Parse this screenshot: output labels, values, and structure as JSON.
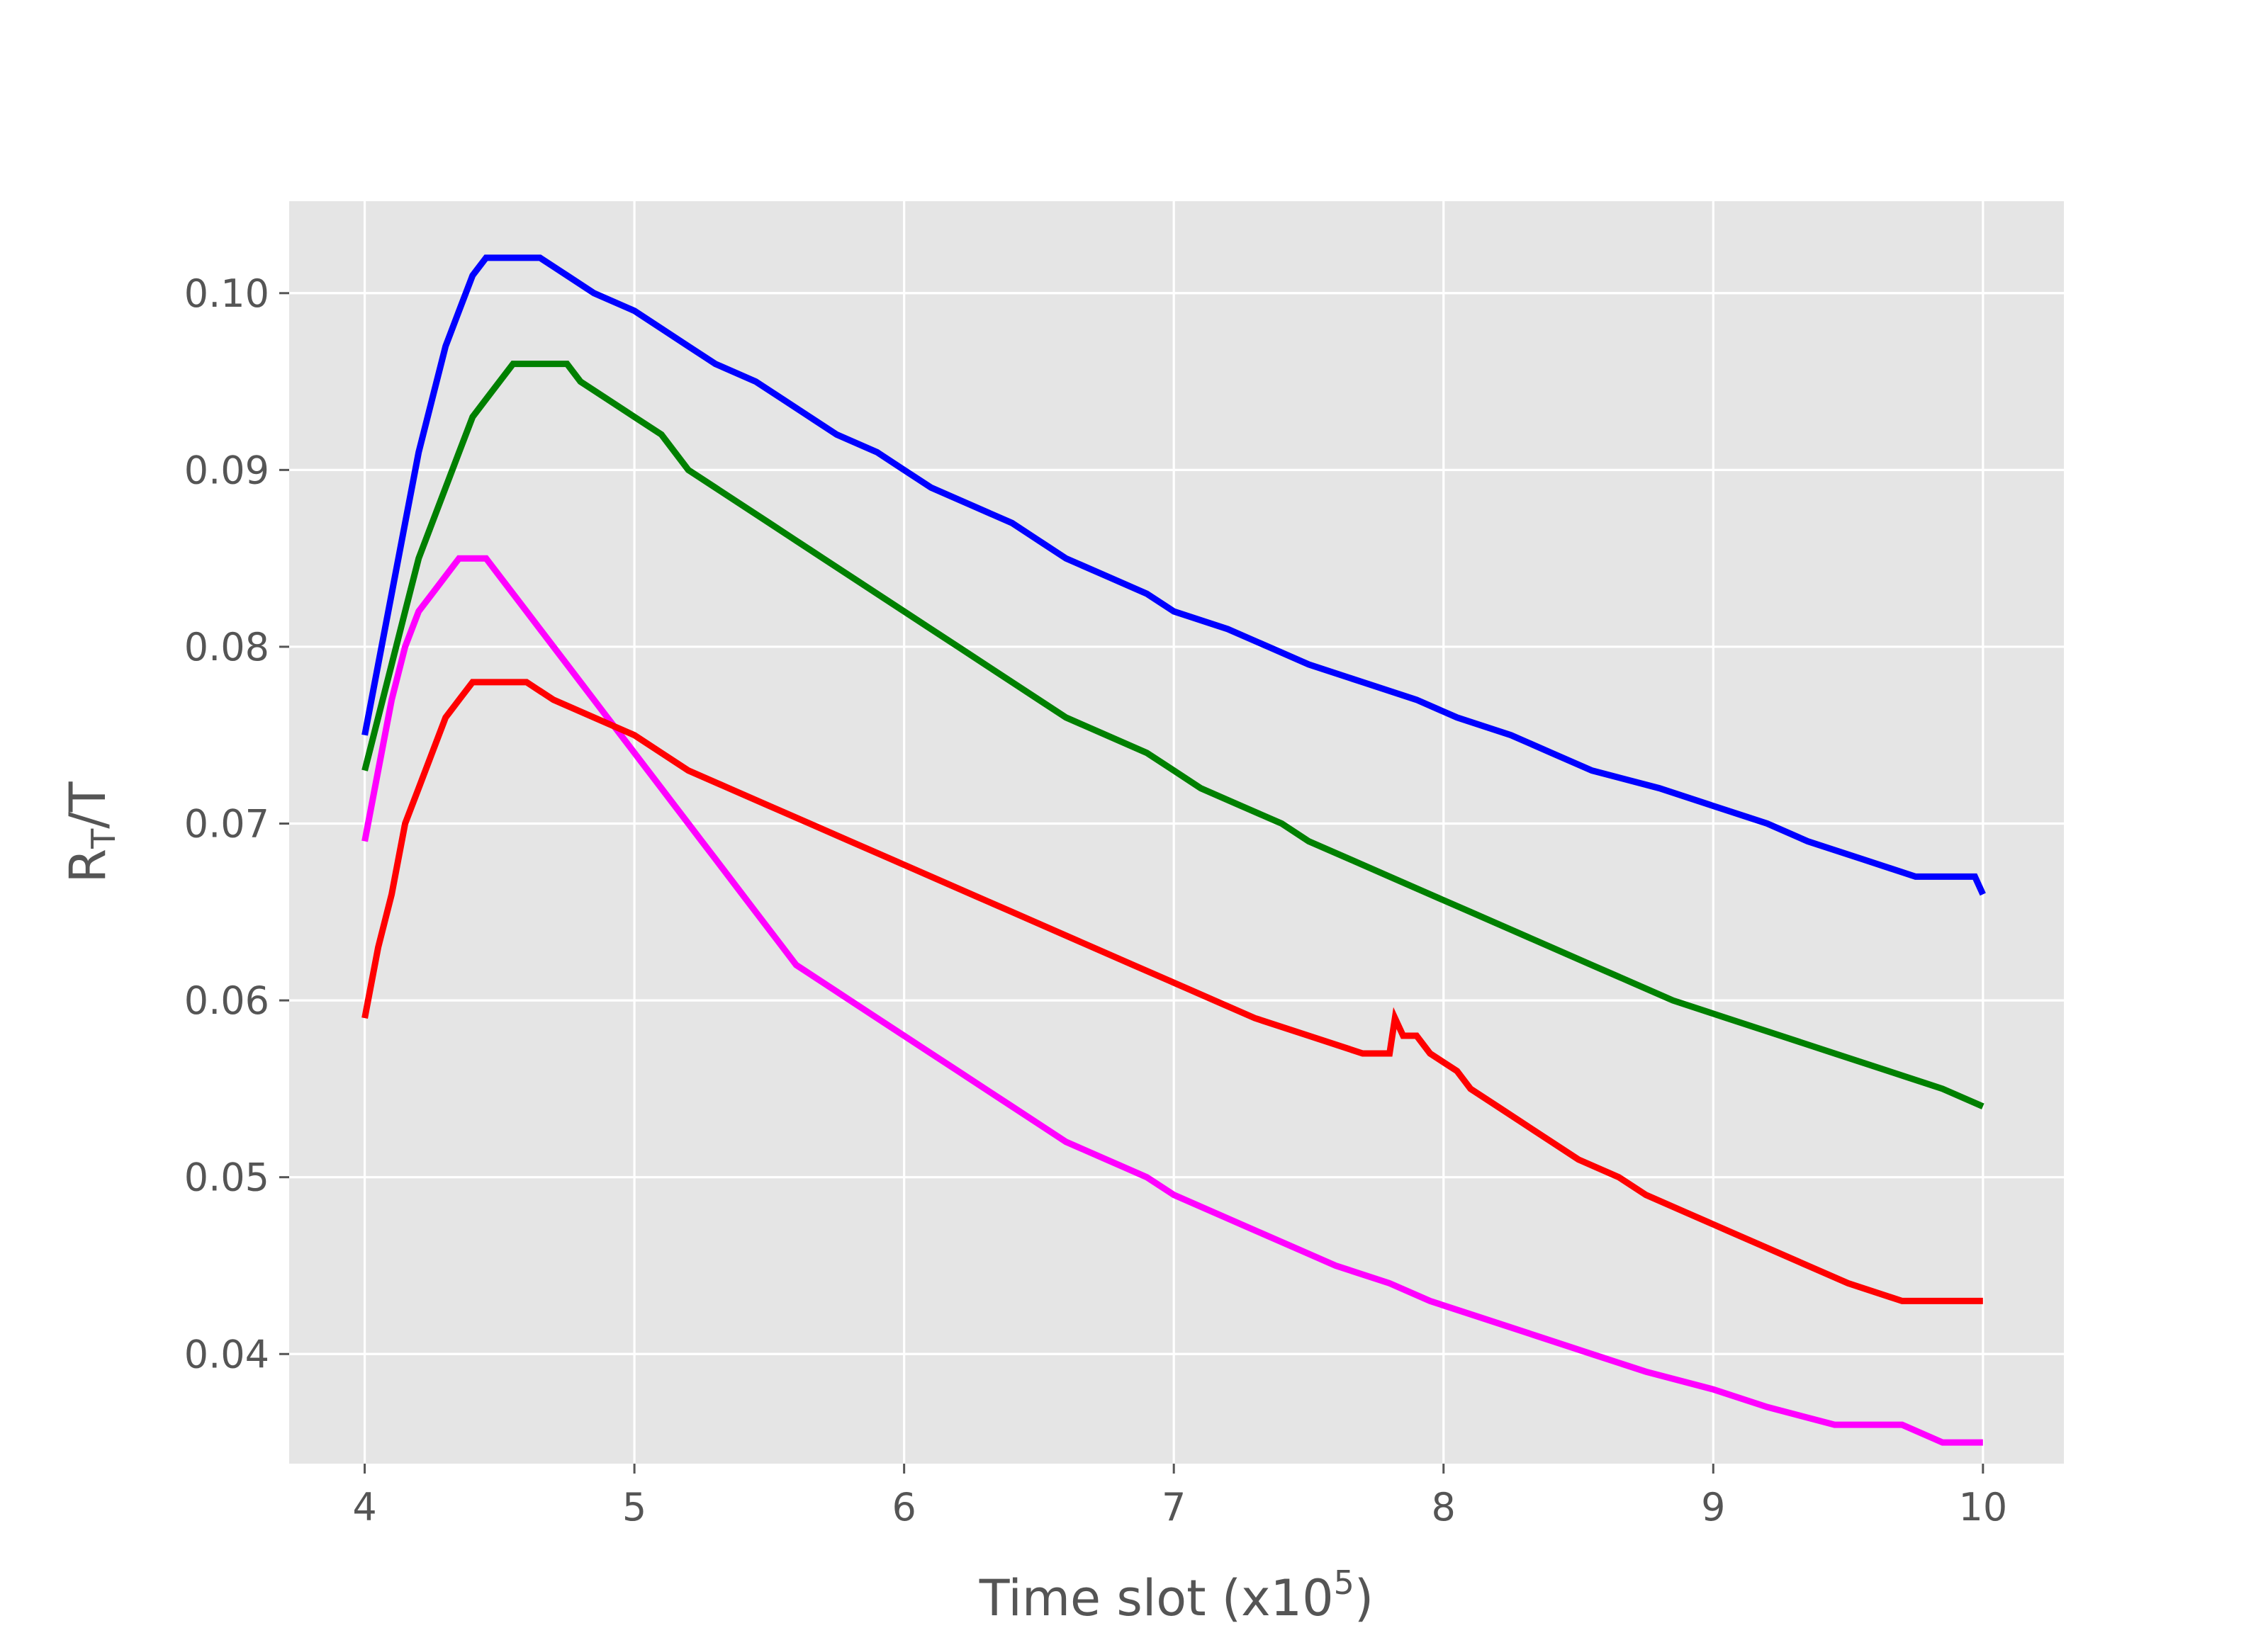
{
  "chart_data": {
    "type": "line",
    "title": "",
    "xlabel": "Time slot (x10",
    "xlabel_sup": "5",
    "xlabel_tail": ")",
    "ylabel": "R",
    "ylabel_sub": "T",
    "ylabel_tail": "/T",
    "xlim": [
      3.72,
      10.3
    ],
    "ylim": [
      0.0338,
      0.1052
    ],
    "xticks": [
      4,
      5,
      6,
      7,
      8,
      9,
      10
    ],
    "yticks": [
      0.04,
      0.05,
      0.06,
      0.07,
      0.08,
      0.09,
      0.1
    ],
    "ytick_labels": [
      "0.04",
      "0.05",
      "0.06",
      "0.07",
      "0.08",
      "0.09",
      "0.10"
    ],
    "grid": true,
    "background": "#e5e5e5",
    "series": [
      {
        "color": "#0000ff",
        "values": [
          [
            4.0,
            0.075
          ],
          [
            4.05,
            0.079
          ],
          [
            4.1,
            0.083
          ],
          [
            4.15,
            0.087
          ],
          [
            4.2,
            0.091
          ],
          [
            4.25,
            0.094
          ],
          [
            4.3,
            0.097
          ],
          [
            4.35,
            0.099
          ],
          [
            4.4,
            0.101
          ],
          [
            4.45,
            0.102
          ],
          [
            4.65,
            0.102
          ],
          [
            4.75,
            0.101
          ],
          [
            4.85,
            0.1
          ],
          [
            5.0,
            0.099
          ],
          [
            5.1,
            0.098
          ],
          [
            5.2,
            0.097
          ],
          [
            5.3,
            0.096
          ],
          [
            5.45,
            0.095
          ],
          [
            5.55,
            0.094
          ],
          [
            5.65,
            0.093
          ],
          [
            5.75,
            0.092
          ],
          [
            5.9,
            0.091
          ],
          [
            6.0,
            0.09
          ],
          [
            6.1,
            0.089
          ],
          [
            6.25,
            0.088
          ],
          [
            6.4,
            0.087
          ],
          [
            6.5,
            0.086
          ],
          [
            6.6,
            0.085
          ],
          [
            6.75,
            0.084
          ],
          [
            6.9,
            0.083
          ],
          [
            7.0,
            0.082
          ],
          [
            7.2,
            0.081
          ],
          [
            7.35,
            0.08
          ],
          [
            7.5,
            0.079
          ],
          [
            7.7,
            0.078
          ],
          [
            7.9,
            0.077
          ],
          [
            8.05,
            0.076
          ],
          [
            8.25,
            0.075
          ],
          [
            8.4,
            0.074
          ],
          [
            8.55,
            0.073
          ],
          [
            8.8,
            0.072
          ],
          [
            9.0,
            0.071
          ],
          [
            9.2,
            0.07
          ],
          [
            9.35,
            0.069
          ],
          [
            9.55,
            0.068
          ],
          [
            9.75,
            0.067
          ],
          [
            9.97,
            0.067
          ],
          [
            10.0,
            0.066
          ]
        ]
      },
      {
        "color": "#008000",
        "values": [
          [
            4.0,
            0.073
          ],
          [
            4.05,
            0.076
          ],
          [
            4.1,
            0.079
          ],
          [
            4.15,
            0.082
          ],
          [
            4.2,
            0.085
          ],
          [
            4.25,
            0.087
          ],
          [
            4.3,
            0.089
          ],
          [
            4.35,
            0.091
          ],
          [
            4.4,
            0.093
          ],
          [
            4.45,
            0.094
          ],
          [
            4.5,
            0.095
          ],
          [
            4.55,
            0.096
          ],
          [
            4.75,
            0.096
          ],
          [
            4.8,
            0.095
          ],
          [
            4.9,
            0.094
          ],
          [
            5.0,
            0.093
          ],
          [
            5.1,
            0.092
          ],
          [
            5.15,
            0.091
          ],
          [
            5.2,
            0.09
          ],
          [
            5.3,
            0.089
          ],
          [
            5.4,
            0.088
          ],
          [
            5.5,
            0.087
          ],
          [
            5.6,
            0.086
          ],
          [
            5.7,
            0.085
          ],
          [
            5.8,
            0.084
          ],
          [
            5.9,
            0.083
          ],
          [
            6.0,
            0.082
          ],
          [
            6.1,
            0.081
          ],
          [
            6.2,
            0.08
          ],
          [
            6.3,
            0.079
          ],
          [
            6.4,
            0.078
          ],
          [
            6.5,
            0.077
          ],
          [
            6.6,
            0.076
          ],
          [
            6.75,
            0.075
          ],
          [
            6.9,
            0.074
          ],
          [
            7.0,
            0.073
          ],
          [
            7.1,
            0.072
          ],
          [
            7.25,
            0.071
          ],
          [
            7.4,
            0.07
          ],
          [
            7.5,
            0.069
          ],
          [
            7.65,
            0.068
          ],
          [
            7.8,
            0.067
          ],
          [
            7.95,
            0.066
          ],
          [
            8.1,
            0.065
          ],
          [
            8.25,
            0.064
          ],
          [
            8.4,
            0.063
          ],
          [
            8.55,
            0.062
          ],
          [
            8.7,
            0.061
          ],
          [
            8.85,
            0.06
          ],
          [
            9.05,
            0.059
          ],
          [
            9.25,
            0.058
          ],
          [
            9.45,
            0.057
          ],
          [
            9.65,
            0.056
          ],
          [
            9.85,
            0.055
          ],
          [
            10.0,
            0.054
          ]
        ]
      },
      {
        "color": "#ff00ff",
        "values": [
          [
            4.0,
            0.069
          ],
          [
            4.05,
            0.073
          ],
          [
            4.1,
            0.077
          ],
          [
            4.15,
            0.08
          ],
          [
            4.2,
            0.082
          ],
          [
            4.25,
            0.083
          ],
          [
            4.3,
            0.084
          ],
          [
            4.35,
            0.085
          ],
          [
            4.45,
            0.085
          ],
          [
            4.5,
            0.084
          ],
          [
            4.55,
            0.083
          ],
          [
            4.6,
            0.082
          ],
          [
            4.65,
            0.081
          ],
          [
            4.7,
            0.08
          ],
          [
            4.75,
            0.079
          ],
          [
            4.8,
            0.078
          ],
          [
            4.85,
            0.077
          ],
          [
            4.9,
            0.076
          ],
          [
            4.95,
            0.075
          ],
          [
            5.0,
            0.074
          ],
          [
            5.05,
            0.073
          ],
          [
            5.1,
            0.072
          ],
          [
            5.15,
            0.071
          ],
          [
            5.2,
            0.07
          ],
          [
            5.25,
            0.069
          ],
          [
            5.3,
            0.068
          ],
          [
            5.35,
            0.067
          ],
          [
            5.4,
            0.066
          ],
          [
            5.45,
            0.065
          ],
          [
            5.5,
            0.064
          ],
          [
            5.55,
            0.063
          ],
          [
            5.6,
            0.062
          ],
          [
            5.7,
            0.061
          ],
          [
            5.8,
            0.06
          ],
          [
            5.9,
            0.059
          ],
          [
            6.0,
            0.058
          ],
          [
            6.1,
            0.057
          ],
          [
            6.2,
            0.056
          ],
          [
            6.3,
            0.055
          ],
          [
            6.4,
            0.054
          ],
          [
            6.5,
            0.053
          ],
          [
            6.6,
            0.052
          ],
          [
            6.75,
            0.051
          ],
          [
            6.9,
            0.05
          ],
          [
            7.0,
            0.049
          ],
          [
            7.15,
            0.048
          ],
          [
            7.3,
            0.047
          ],
          [
            7.45,
            0.046
          ],
          [
            7.6,
            0.045
          ],
          [
            7.8,
            0.044
          ],
          [
            7.95,
            0.043
          ],
          [
            8.15,
            0.042
          ],
          [
            8.35,
            0.041
          ],
          [
            8.55,
            0.04
          ],
          [
            8.75,
            0.039
          ],
          [
            9.0,
            0.038
          ],
          [
            9.2,
            0.037
          ],
          [
            9.45,
            0.036
          ],
          [
            9.7,
            0.036
          ],
          [
            9.85,
            0.035
          ],
          [
            10.0,
            0.035
          ]
        ]
      },
      {
        "color": "#ff0000",
        "values": [
          [
            4.0,
            0.059
          ],
          [
            4.05,
            0.063
          ],
          [
            4.1,
            0.066
          ],
          [
            4.15,
            0.07
          ],
          [
            4.2,
            0.072
          ],
          [
            4.25,
            0.074
          ],
          [
            4.3,
            0.076
          ],
          [
            4.35,
            0.077
          ],
          [
            4.4,
            0.078
          ],
          [
            4.6,
            0.078
          ],
          [
            4.7,
            0.077
          ],
          [
            4.85,
            0.076
          ],
          [
            5.0,
            0.075
          ],
          [
            5.1,
            0.074
          ],
          [
            5.2,
            0.073
          ],
          [
            5.35,
            0.072
          ],
          [
            5.5,
            0.071
          ],
          [
            5.65,
            0.07
          ],
          [
            5.8,
            0.069
          ],
          [
            5.95,
            0.068
          ],
          [
            6.1,
            0.067
          ],
          [
            6.25,
            0.066
          ],
          [
            6.4,
            0.065
          ],
          [
            6.55,
            0.064
          ],
          [
            6.7,
            0.063
          ],
          [
            6.85,
            0.062
          ],
          [
            7.0,
            0.061
          ],
          [
            7.15,
            0.06
          ],
          [
            7.3,
            0.059
          ],
          [
            7.5,
            0.058
          ],
          [
            7.7,
            0.057
          ],
          [
            7.8,
            0.057
          ],
          [
            7.82,
            0.059
          ],
          [
            7.85,
            0.058
          ],
          [
            7.9,
            0.058
          ],
          [
            7.95,
            0.057
          ],
          [
            8.05,
            0.056
          ],
          [
            8.1,
            0.055
          ],
          [
            8.2,
            0.054
          ],
          [
            8.3,
            0.053
          ],
          [
            8.4,
            0.052
          ],
          [
            8.5,
            0.051
          ],
          [
            8.65,
            0.05
          ],
          [
            8.75,
            0.049
          ],
          [
            8.9,
            0.048
          ],
          [
            9.05,
            0.047
          ],
          [
            9.2,
            0.046
          ],
          [
            9.35,
            0.045
          ],
          [
            9.5,
            0.044
          ],
          [
            9.7,
            0.043
          ],
          [
            10.0,
            0.043
          ]
        ]
      }
    ]
  }
}
